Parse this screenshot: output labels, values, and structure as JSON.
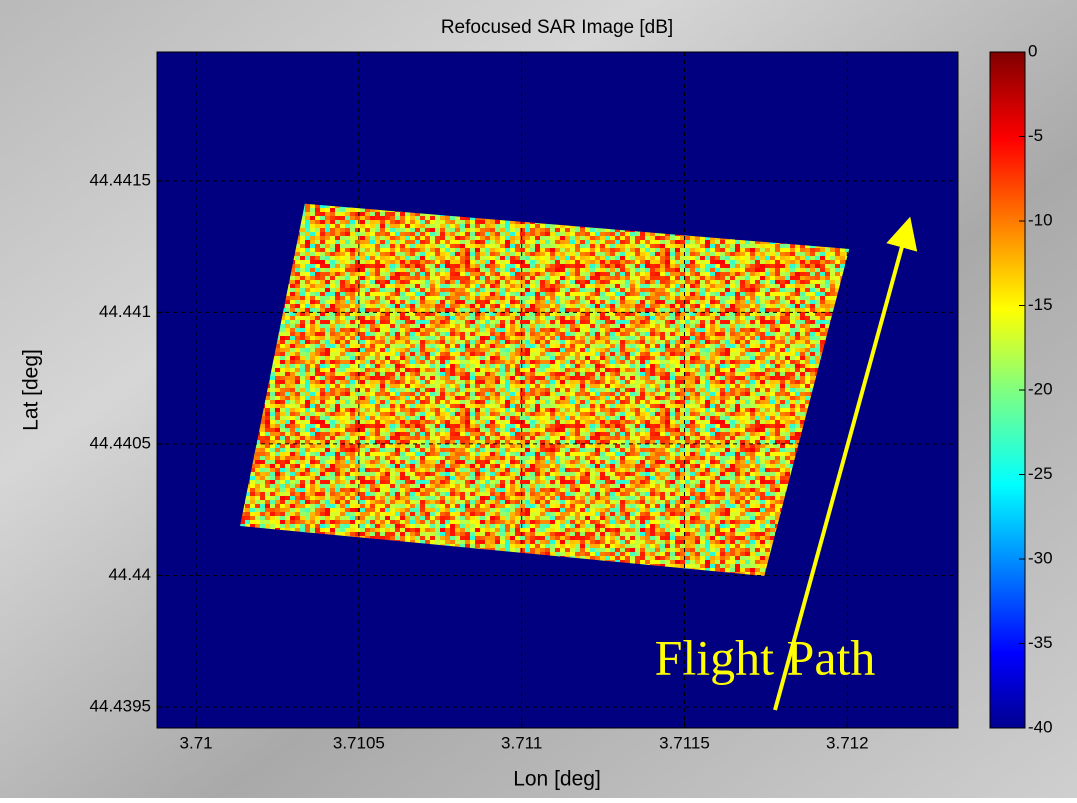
{
  "chart_data": {
    "type": "heatmap",
    "title": "Refocused SAR Image [dB]",
    "x_label": "Lon [deg]",
    "y_label": "Lat [deg]",
    "annotation": "Flight Path",
    "colormap": "jet",
    "background_value": -40,
    "footprint": {
      "x": [
        3.710334,
        3.712006,
        3.711745,
        3.710135
      ],
      "y": [
        44.441413,
        44.441241,
        44.439998,
        44.440188
      ]
    },
    "xlim": [
      3.70988,
      3.71234
    ],
    "xticks": [
      3.71,
      3.7105,
      3.711,
      3.7115,
      3.712
    ],
    "ylim": [
      44.43942,
      44.44199
    ],
    "yticks": [
      44.4395,
      44.44,
      44.4405,
      44.441,
      44.4415
    ],
    "clim": [
      -40,
      0
    ],
    "cticks": [
      0,
      -5,
      -10,
      -15,
      -20,
      -25,
      -30,
      -35,
      -40
    ],
    "grid": true
  }
}
